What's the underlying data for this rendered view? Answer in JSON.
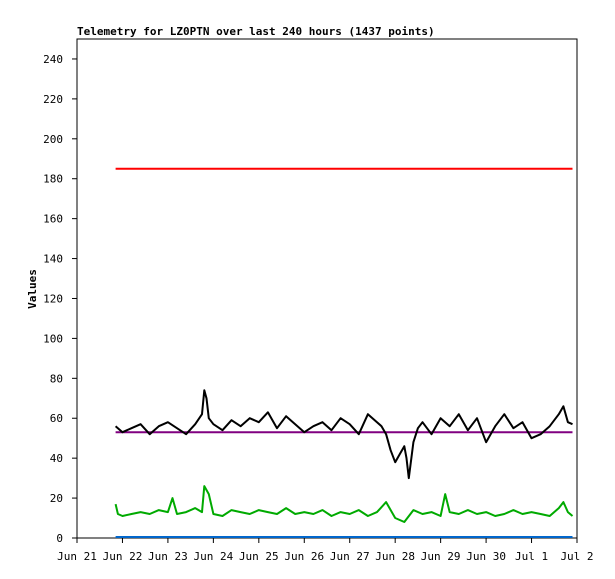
{
  "chart_data": {
    "type": "line",
    "title": "Telemetry for LZ0PTN over last 240 hours (1437 points)",
    "xlabel": "",
    "ylabel": "Values",
    "ylim": [
      0,
      250
    ],
    "xlim": [
      0,
      11
    ],
    "y_ticks": [
      0,
      20,
      40,
      60,
      80,
      100,
      120,
      140,
      160,
      180,
      200,
      220,
      240
    ],
    "x_ticks": [
      {
        "label": "Jun 21",
        "x": 0
      },
      {
        "label": "Jun 22",
        "x": 1
      },
      {
        "label": "Jun 23",
        "x": 2
      },
      {
        "label": "Jun 24",
        "x": 3
      },
      {
        "label": "Jun 25",
        "x": 4
      },
      {
        "label": "Jun 26",
        "x": 5
      },
      {
        "label": "Jun 27",
        "x": 6
      },
      {
        "label": "Jun 28",
        "x": 7
      },
      {
        "label": "Jun 29",
        "x": 8
      },
      {
        "label": "Jun 30",
        "x": 9
      },
      {
        "label": "Jul 1",
        "x": 10
      },
      {
        "label": "Jul 2",
        "x": 11
      }
    ],
    "grid": false,
    "series": [
      {
        "color": "#ff0000",
        "x": [
          0.85,
          10.9
        ],
        "y": [
          185,
          185
        ]
      },
      {
        "color": "#800080",
        "x": [
          0.85,
          10.9
        ],
        "y": [
          53,
          53
        ]
      },
      {
        "color": "#0066cc",
        "x": [
          0.85,
          10.9
        ],
        "y": [
          0.5,
          0.5
        ]
      },
      {
        "color": "#000000",
        "x": [
          0.85,
          1.0,
          1.2,
          1.4,
          1.6,
          1.8,
          2.0,
          2.2,
          2.4,
          2.6,
          2.75,
          2.8,
          2.85,
          2.9,
          3.0,
          3.2,
          3.4,
          3.6,
          3.8,
          4.0,
          4.2,
          4.4,
          4.6,
          4.8,
          5.0,
          5.2,
          5.4,
          5.6,
          5.8,
          6.0,
          6.2,
          6.4,
          6.6,
          6.7,
          6.8,
          6.9,
          7.0,
          7.1,
          7.2,
          7.25,
          7.3,
          7.4,
          7.5,
          7.6,
          7.8,
          8.0,
          8.2,
          8.4,
          8.6,
          8.8,
          9.0,
          9.2,
          9.4,
          9.6,
          9.8,
          10.0,
          10.2,
          10.4,
          10.6,
          10.7,
          10.8,
          10.9
        ],
        "y": [
          56,
          53,
          55,
          57,
          52,
          56,
          58,
          55,
          52,
          57,
          62,
          74,
          70,
          60,
          57,
          54,
          59,
          56,
          60,
          58,
          63,
          55,
          61,
          57,
          53,
          56,
          58,
          54,
          60,
          57,
          52,
          62,
          58,
          56,
          52,
          44,
          38,
          42,
          46,
          40,
          30,
          48,
          55,
          58,
          52,
          60,
          56,
          62,
          54,
          60,
          48,
          56,
          62,
          55,
          58,
          50,
          52,
          56,
          62,
          66,
          58,
          57
        ]
      },
      {
        "color": "#00aa00",
        "x": [
          0.85,
          0.9,
          1.0,
          1.2,
          1.4,
          1.6,
          1.8,
          2.0,
          2.1,
          2.2,
          2.4,
          2.6,
          2.75,
          2.8,
          2.9,
          3.0,
          3.2,
          3.4,
          3.6,
          3.8,
          4.0,
          4.2,
          4.4,
          4.6,
          4.8,
          5.0,
          5.2,
          5.4,
          5.6,
          5.8,
          6.0,
          6.2,
          6.4,
          6.6,
          6.8,
          7.0,
          7.2,
          7.4,
          7.6,
          7.8,
          8.0,
          8.1,
          8.2,
          8.4,
          8.6,
          8.8,
          9.0,
          9.2,
          9.4,
          9.6,
          9.8,
          10.0,
          10.2,
          10.4,
          10.6,
          10.7,
          10.8,
          10.9
        ],
        "y": [
          17,
          12,
          11,
          12,
          13,
          12,
          14,
          13,
          20,
          12,
          13,
          15,
          13,
          26,
          22,
          12,
          11,
          14,
          13,
          12,
          14,
          13,
          12,
          15,
          12,
          13,
          12,
          14,
          11,
          13,
          12,
          14,
          11,
          13,
          18,
          10,
          8,
          14,
          12,
          13,
          11,
          22,
          13,
          12,
          14,
          12,
          13,
          11,
          12,
          14,
          12,
          13,
          12,
          11,
          15,
          18,
          13,
          11
        ]
      }
    ]
  }
}
